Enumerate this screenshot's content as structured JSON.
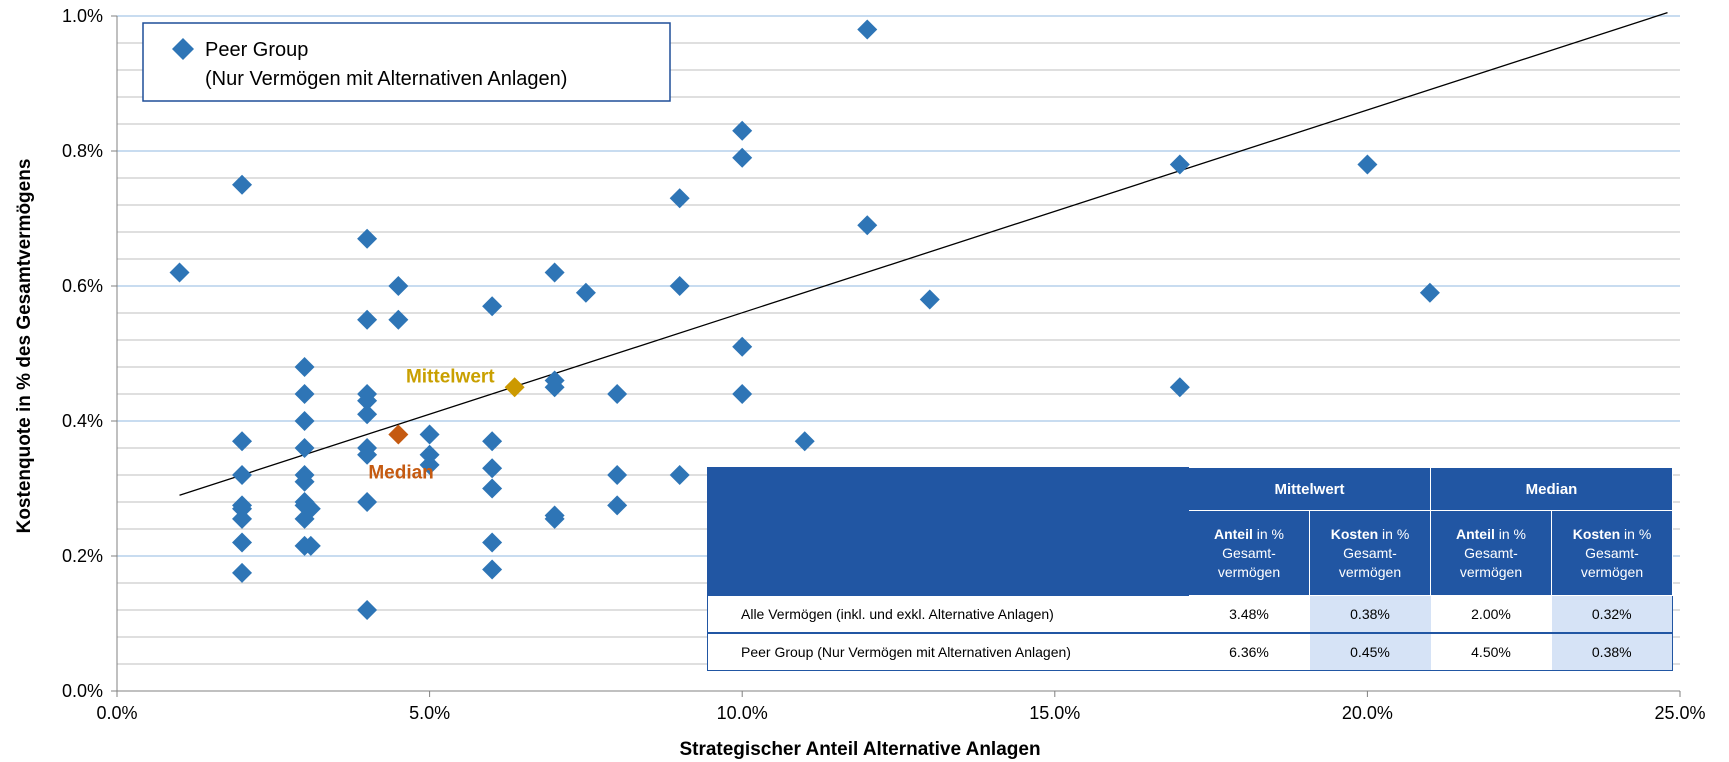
{
  "chart_data": {
    "type": "scatter",
    "xlabel": "Strategischer Anteil Alternative Anlagen",
    "ylabel": "Kostenquote in % des Gesamtvermögens",
    "xlim": [
      0,
      25
    ],
    "ylim": [
      0,
      1.0
    ],
    "x_ticks": [
      "0.0%",
      "5.0%",
      "10.0%",
      "15.0%",
      "20.0%",
      "25.0%"
    ],
    "y_ticks": [
      "0.0%",
      "0.2%",
      "0.4%",
      "0.6%",
      "0.8%",
      "1.0%"
    ],
    "x_tick_values": [
      0,
      5,
      10,
      15,
      20,
      25
    ],
    "y_tick_values": [
      0,
      0.2,
      0.4,
      0.6,
      0.8,
      1.0
    ],
    "grid": "horizontal",
    "legend": {
      "placement": "top-left",
      "line1": "Peer Group",
      "line2": "(Nur Vermögen mit Alternativen Anlagen)"
    },
    "series": [
      {
        "name": "Peer Group (Nur Vermögen mit Alternativen Anlagen)",
        "color": "#2E75B6",
        "marker": "diamond",
        "points": [
          [
            1,
            0.62
          ],
          [
            2,
            0.75
          ],
          [
            2,
            0.37
          ],
          [
            2,
            0.32
          ],
          [
            2,
            0.275
          ],
          [
            2,
            0.27
          ],
          [
            2,
            0.255
          ],
          [
            2,
            0.22
          ],
          [
            2,
            0.175
          ],
          [
            3,
            0.48
          ],
          [
            3,
            0.44
          ],
          [
            3,
            0.4
          ],
          [
            3,
            0.36
          ],
          [
            3,
            0.32
          ],
          [
            3,
            0.31
          ],
          [
            3,
            0.28
          ],
          [
            3,
            0.275
          ],
          [
            3.1,
            0.27
          ],
          [
            3,
            0.255
          ],
          [
            3,
            0.215
          ],
          [
            3.1,
            0.215
          ],
          [
            4,
            0.67
          ],
          [
            4,
            0.55
          ],
          [
            4,
            0.44
          ],
          [
            4,
            0.43
          ],
          [
            4,
            0.41
          ],
          [
            4,
            0.36
          ],
          [
            4,
            0.35
          ],
          [
            4,
            0.28
          ],
          [
            4,
            0.12
          ],
          [
            4.5,
            0.6
          ],
          [
            4.5,
            0.55
          ],
          [
            5,
            0.38
          ],
          [
            5,
            0.35
          ],
          [
            5,
            0.335
          ],
          [
            6,
            0.57
          ],
          [
            6,
            0.37
          ],
          [
            6,
            0.33
          ],
          [
            6,
            0.3
          ],
          [
            6,
            0.22
          ],
          [
            6,
            0.18
          ],
          [
            7,
            0.62
          ],
          [
            7,
            0.46
          ],
          [
            7,
            0.45
          ],
          [
            7,
            0.26
          ],
          [
            7,
            0.255
          ],
          [
            7.5,
            0.59
          ],
          [
            8,
            0.44
          ],
          [
            8,
            0.32
          ],
          [
            8,
            0.275
          ],
          [
            9,
            0.73
          ],
          [
            9,
            0.6
          ],
          [
            9,
            0.32
          ],
          [
            10,
            0.83
          ],
          [
            10,
            0.79
          ],
          [
            10,
            0.51
          ],
          [
            10,
            0.44
          ],
          [
            11,
            0.37
          ],
          [
            12,
            0.98
          ],
          [
            12,
            0.69
          ],
          [
            13,
            0.58
          ],
          [
            17,
            0.78
          ],
          [
            17,
            0.45
          ],
          [
            20,
            0.78
          ],
          [
            21,
            0.59
          ]
        ]
      }
    ],
    "trendline": {
      "x1": 1,
      "y1": 0.29,
      "x2": 24.8,
      "y2": 1.005,
      "color": "#000000"
    },
    "highlights": [
      {
        "label": "Mittelwert",
        "x": 6.36,
        "y": 0.45,
        "color": "#CC9900",
        "label_color": "#C9A000"
      },
      {
        "label": "Median",
        "x": 4.5,
        "y": 0.38,
        "color": "#C55A11",
        "label_color": "#C55A11"
      }
    ]
  },
  "summary_table": {
    "group_headers": [
      "Mittelwert",
      "Median"
    ],
    "sub_headers": [
      {
        "bold": "Anteil",
        "rest1": " in %",
        "rest2": "Gesamt-",
        "rest3": "vermögen"
      },
      {
        "bold": "Kosten",
        "rest1": " in %",
        "rest2": "Gesamt-",
        "rest3": "vermögen"
      },
      {
        "bold": "Anteil",
        "rest1": " in %",
        "rest2": "Gesamt-",
        "rest3": "vermögen"
      },
      {
        "bold": "Kosten",
        "rest1": " in %",
        "rest2": "Gesamt-",
        "rest3": "vermögen"
      }
    ],
    "rows": [
      {
        "label": "Alle Vermögen (inkl. und exkl. Alternative Anlagen)",
        "values": [
          "3.48%",
          "0.38%",
          "2.00%",
          "0.32%"
        ]
      },
      {
        "label": "Peer Group (Nur Vermögen mit Alternativen Anlagen)",
        "values": [
          "6.36%",
          "0.45%",
          "4.50%",
          "0.38%"
        ]
      }
    ]
  },
  "colors": {
    "grid_major": "#A6C8E8",
    "grid_minor": "#BFBFBF",
    "table_header": "#2156A3",
    "table_shade": "#D6E3F6"
  }
}
